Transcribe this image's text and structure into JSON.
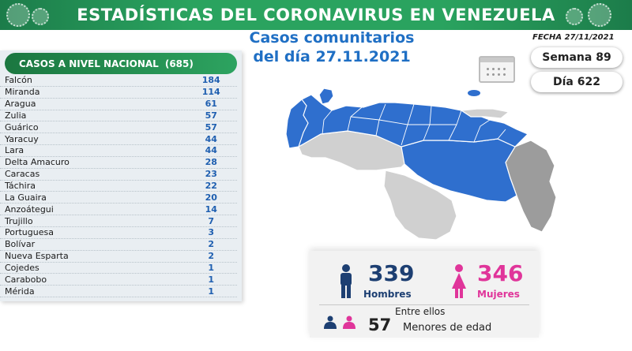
{
  "header": {
    "title": "ESTADÍSTICAS DEL CORONAVIRUS EN VENEZUELA",
    "subtitle_line1": "Casos comunitarios",
    "subtitle_line2": "del día 27.11.2021",
    "fecha": "FECHA 27/11/2021"
  },
  "badges": {
    "semana": "Semana 89",
    "dia": "Día 622"
  },
  "national": {
    "label": "CASOS A NIVEL NACIONAL",
    "total": "(685)",
    "rows": [
      {
        "state": "Falcón",
        "cases": "184"
      },
      {
        "state": "Miranda",
        "cases": "114"
      },
      {
        "state": "Aragua",
        "cases": "61"
      },
      {
        "state": "Zulia",
        "cases": "57"
      },
      {
        "state": "Guárico",
        "cases": "57"
      },
      {
        "state": "Yaracuy",
        "cases": "44"
      },
      {
        "state": "Lara",
        "cases": "44"
      },
      {
        "state": "Delta Amacuro",
        "cases": "28"
      },
      {
        "state": "Caracas",
        "cases": "23"
      },
      {
        "state": "Táchira",
        "cases": "22"
      },
      {
        "state": "La Guaira",
        "cases": "20"
      },
      {
        "state": "Anzoátegui",
        "cases": "14"
      },
      {
        "state": "Trujillo",
        "cases": "7"
      },
      {
        "state": "Portuguesa",
        "cases": "3"
      },
      {
        "state": "Bolívar",
        "cases": "2"
      },
      {
        "state": "Nueva Esparta",
        "cases": "2"
      },
      {
        "state": "Cojedes",
        "cases": "1"
      },
      {
        "state": "Carabobo",
        "cases": "1"
      },
      {
        "state": "Mérida",
        "cases": "1"
      }
    ]
  },
  "summary": {
    "hombres_count": "339",
    "hombres_label": "Hombres",
    "mujeres_count": "346",
    "mujeres_label": "Mujeres",
    "entre_ellos": "Entre ellos",
    "menores_count": "57",
    "menores_label": "Menores de edad"
  },
  "icons": {
    "calendar": "calendar-icon",
    "male": "male-person-icon",
    "female": "female-person-icon",
    "children": "children-icon",
    "virus": "virus-icon",
    "map": "venezuela-map"
  },
  "colors": {
    "banner_green": "#2aa35f",
    "title_blue": "#1f6fc4",
    "map_blue": "#2f6fce",
    "map_gray_light": "#d0d0d0",
    "map_gray_dark": "#9c9c9c",
    "male_blue": "#1d3f72",
    "female_pink": "#e0359a"
  }
}
